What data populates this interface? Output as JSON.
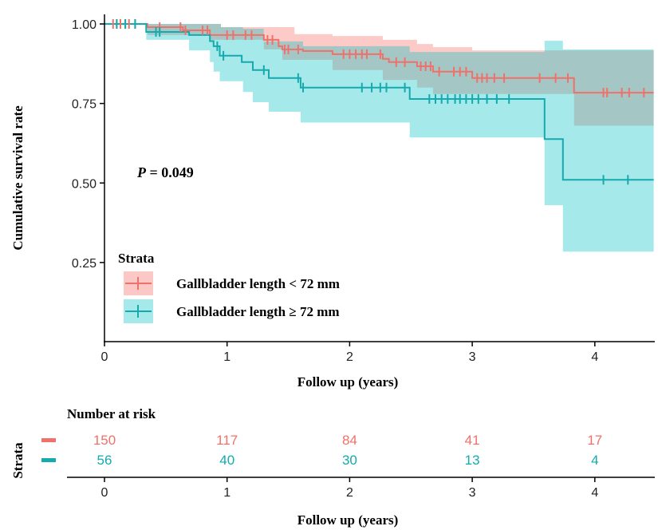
{
  "chart_data": {
    "type": "line",
    "subtype": "kaplan-meier",
    "xlabel": "Follow up (years)",
    "ylabel": "Cumulative survival rate",
    "xlim": [
      0,
      4.48
    ],
    "ylim": [
      0,
      1.03
    ],
    "x_ticks": [
      0,
      1,
      2,
      3,
      4
    ],
    "y_ticks": [
      "0.25",
      "0.50",
      "0.75",
      "1.00"
    ],
    "y_tick_values": [
      0.25,
      0.5,
      0.75,
      1.0
    ],
    "grid": false,
    "annotation": {
      "label": "P",
      "text": " = 0.049"
    },
    "legend": {
      "title": "Strata",
      "placement": "bottom-left-inside"
    },
    "series": [
      {
        "name": "Gallbladder length < 72 mm",
        "color": "#F0706A",
        "band_color": "#F8766D",
        "steps": [
          [
            0,
            1.0
          ],
          [
            0.35,
            0.99
          ],
          [
            0.64,
            0.98
          ],
          [
            0.86,
            0.965
          ],
          [
            1.3,
            0.95
          ],
          [
            1.42,
            0.93
          ],
          [
            1.45,
            0.92
          ],
          [
            1.62,
            0.915
          ],
          [
            1.86,
            0.905
          ],
          [
            2.27,
            0.89
          ],
          [
            2.32,
            0.88
          ],
          [
            2.55,
            0.867
          ],
          [
            2.68,
            0.85
          ],
          [
            3.0,
            0.83
          ],
          [
            3.83,
            0.784
          ],
          [
            4.48,
            0.784
          ]
        ],
        "upper": [
          [
            0,
            1.0
          ],
          [
            0.95,
            0.99
          ],
          [
            1.55,
            0.968
          ],
          [
            1.86,
            0.962
          ],
          [
            2.27,
            0.95
          ],
          [
            2.55,
            0.937
          ],
          [
            2.68,
            0.927
          ],
          [
            3.0,
            0.917
          ],
          [
            4.48,
            0.917
          ]
        ],
        "lower": [
          [
            0,
            1.0
          ],
          [
            0.35,
            0.965
          ],
          [
            0.86,
            0.95
          ],
          [
            1.3,
            0.92
          ],
          [
            1.45,
            0.887
          ],
          [
            1.86,
            0.855
          ],
          [
            2.27,
            0.824
          ],
          [
            2.55,
            0.8
          ],
          [
            2.68,
            0.78
          ],
          [
            3.83,
            0.68
          ],
          [
            4.48,
            0.68
          ]
        ],
        "censored": [
          0.07,
          0.1,
          0.13,
          0.17,
          0.2,
          0.25,
          0.45,
          0.62,
          0.66,
          0.8,
          0.84,
          1.0,
          1.05,
          1.15,
          1.2,
          1.33,
          1.37,
          1.47,
          1.5,
          1.58,
          1.95,
          2.0,
          2.05,
          2.1,
          2.14,
          2.25,
          2.38,
          2.45,
          2.58,
          2.62,
          2.66,
          2.73,
          2.85,
          2.9,
          2.95,
          3.04,
          3.08,
          3.12,
          3.18,
          3.26,
          3.55,
          3.68,
          3.78,
          4.07,
          4.1,
          4.22,
          4.28,
          4.4
        ]
      },
      {
        "name": "Gallbladder length ≥ 72 mm",
        "color": "#14AAAE",
        "band_color": "#00BFC4",
        "steps": [
          [
            0,
            1.0
          ],
          [
            0.34,
            0.975
          ],
          [
            0.69,
            0.965
          ],
          [
            0.86,
            0.946
          ],
          [
            0.89,
            0.93
          ],
          [
            0.94,
            0.9
          ],
          [
            1.12,
            0.88
          ],
          [
            1.21,
            0.855
          ],
          [
            1.34,
            0.83
          ],
          [
            1.6,
            0.8
          ],
          [
            2.49,
            0.764
          ],
          [
            3.59,
            0.638
          ],
          [
            3.74,
            0.51
          ],
          [
            4.48,
            0.51
          ]
        ],
        "upper": [
          [
            0,
            1.0
          ],
          [
            0.95,
            0.99
          ],
          [
            1.13,
            0.985
          ],
          [
            1.3,
            0.945
          ],
          [
            1.62,
            0.93
          ],
          [
            2.49,
            0.912
          ],
          [
            3.59,
            0.947
          ],
          [
            3.74,
            0.92
          ],
          [
            4.48,
            0.92
          ]
        ],
        "lower": [
          [
            0,
            1.0
          ],
          [
            0.34,
            0.95
          ],
          [
            0.69,
            0.917
          ],
          [
            0.86,
            0.88
          ],
          [
            0.89,
            0.85
          ],
          [
            0.94,
            0.82
          ],
          [
            1.13,
            0.786
          ],
          [
            1.21,
            0.754
          ],
          [
            1.34,
            0.724
          ],
          [
            1.6,
            0.69
          ],
          [
            2.49,
            0.643
          ],
          [
            3.59,
            0.43
          ],
          [
            3.74,
            0.284
          ],
          [
            4.48,
            0.284
          ]
        ],
        "censored": [
          0.1,
          0.17,
          0.25,
          0.42,
          0.45,
          0.92,
          0.97,
          1.3,
          1.58,
          1.62,
          2.1,
          2.18,
          2.25,
          2.3,
          2.45,
          2.65,
          2.7,
          2.75,
          2.8,
          2.86,
          2.9,
          2.95,
          3.0,
          3.05,
          3.12,
          3.2,
          3.3,
          4.07,
          4.27
        ]
      }
    ],
    "risk_table": {
      "title": "Number at risk",
      "ylabel": "Strata",
      "xlabel": "Follow up (years)",
      "times": [
        0,
        1,
        2,
        3,
        4
      ],
      "rows": [
        {
          "color": "#F0706A",
          "counts": [
            "150",
            "117",
            "84",
            "41",
            "17"
          ]
        },
        {
          "color": "#14AAAE",
          "counts": [
            "56",
            "40",
            "30",
            "13",
            "4"
          ]
        }
      ]
    }
  }
}
